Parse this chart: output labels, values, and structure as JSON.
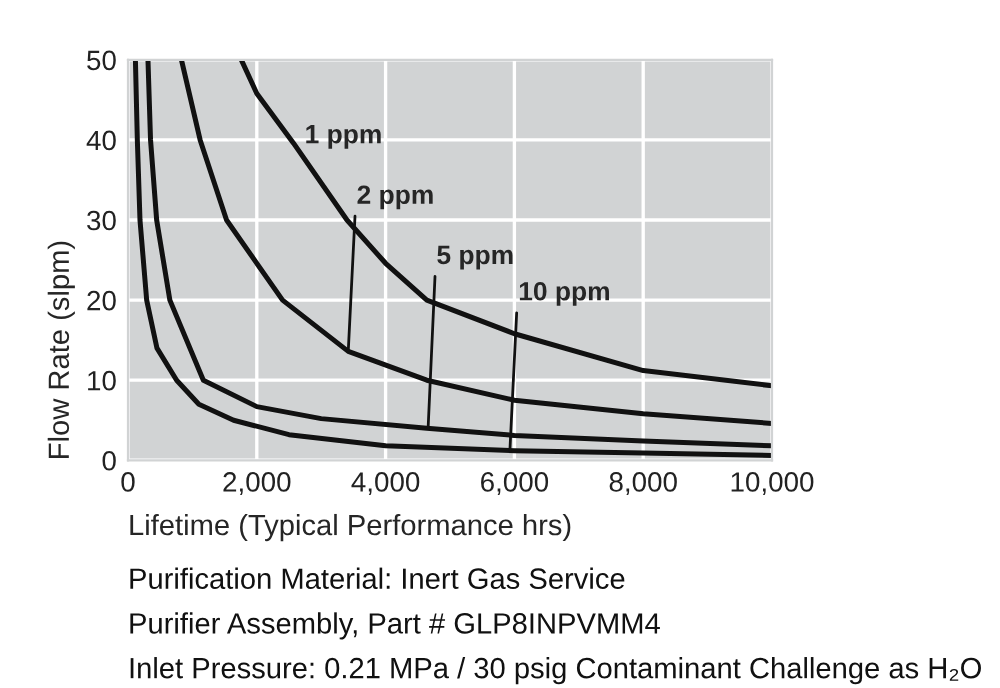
{
  "chart_data": {
    "type": "line",
    "xlabel": "Lifetime (Typical Performance hrs)",
    "ylabel": "Flow Rate (slpm)",
    "xlim": [
      0,
      10000
    ],
    "xticks": [
      0,
      {
        "value": 2000,
        "label": "2,000"
      },
      {
        "value": 4000,
        "label": "4,000"
      },
      {
        "value": 6000,
        "label": "6,000"
      },
      {
        "value": 8000,
        "label": "8,000"
      },
      {
        "value": 10000,
        "label": "10,000"
      }
    ],
    "ylim": [
      0,
      50
    ],
    "yticks": [
      0,
      10,
      20,
      30,
      40,
      50
    ],
    "grid": true,
    "marker": "none",
    "line_style": "solid",
    "series": [
      {
        "color": "#111111",
        "x": [
          1760,
          2000,
          2570,
          3400,
          4000,
          4640,
          6000,
          8000,
          10000
        ],
        "values": [
          50,
          45.8,
          39.6,
          30,
          24.6,
          20,
          15.8,
          11.2,
          9.3
        ]
      },
      {
        "color": "#111111",
        "x": [
          830,
          1120,
          1530,
          2400,
          3420,
          4640,
          6000,
          8000,
          10000
        ],
        "values": [
          50,
          40,
          30,
          20,
          13.6,
          10,
          7.5,
          5.8,
          4.6
        ]
      },
      {
        "color": "#111111",
        "x": [
          310,
          350,
          445,
          650,
          1170,
          2000,
          3000,
          4640,
          6000,
          8000,
          10000
        ],
        "values": [
          50,
          40,
          30,
          20,
          10,
          6.7,
          5.2,
          4.0,
          3.1,
          2.4,
          1.8
        ]
      },
      {
        "color": "#111111",
        "x": [
          115,
          145,
          186,
          290,
          450,
          755,
          1100,
          1640,
          2500,
          4000,
          6000,
          8000,
          10000
        ],
        "values": [
          50,
          40,
          30,
          20,
          14,
          10,
          7,
          5,
          3.2,
          1.8,
          1.2,
          0.9,
          0.6
        ]
      }
    ],
    "annotations": [
      {
        "text": "1 ppm",
        "x": 2570,
        "y": 39.6
      },
      {
        "text": "2 ppm",
        "x": 3420,
        "y": 13.6
      },
      {
        "text": "5 ppm",
        "x": 4660,
        "y": 4.0
      },
      {
        "text": "10 ppm",
        "x": 5930,
        "y": 1.2
      },
      "Purification Material: Inert Gas Service",
      "Purifier Assembly, Part # GLP8INPVMM4",
      "Inlet Pressure: 0.21 MPa / 30 psig Contaminant Challenge as H₂O"
    ]
  }
}
